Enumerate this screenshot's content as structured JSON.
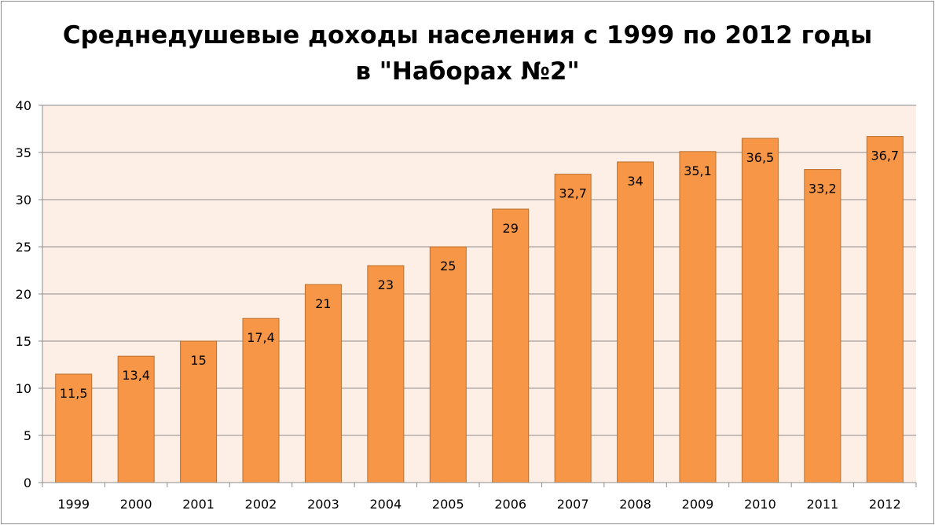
{
  "chart_data": {
    "type": "bar",
    "title_lines": [
      "Среднедушевые доходы населения с 1999 по 2012 годы",
      "в \"Наборах №2\""
    ],
    "categories": [
      "1999",
      "2000",
      "2001",
      "2002",
      "2003",
      "2004",
      "2005",
      "2006",
      "2007",
      "2008",
      "2009",
      "2010",
      "2011",
      "2012"
    ],
    "values": [
      11.5,
      13.4,
      15,
      17.4,
      21,
      23,
      25,
      29,
      32.7,
      34,
      35.1,
      36.5,
      33.2,
      36.7
    ],
    "data_labels": [
      "11,5",
      "13,4",
      "15",
      "17,4",
      "21",
      "23",
      "25",
      "29",
      "32,7",
      "34",
      "35,1",
      "36,5",
      "33,2",
      "36,7"
    ],
    "xlabel": "",
    "ylabel": "",
    "ylim": [
      0,
      40
    ],
    "yticks": [
      0,
      5,
      10,
      15,
      20,
      25,
      30,
      35,
      40
    ],
    "grid": true,
    "legend": "none",
    "colors": {
      "bar_fill": "#f79646",
      "bar_stroke": "#b9702f",
      "plot_background": "#fdeee6",
      "gridline": "#8c8c8c",
      "axis": "#8c8c8c"
    }
  }
}
